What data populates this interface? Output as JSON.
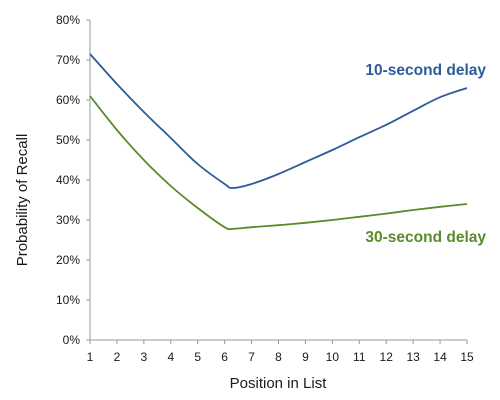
{
  "chart_data": {
    "type": "line",
    "title": "",
    "xlabel": "Position in List",
    "ylabel": "Probability of Recall",
    "x": [
      1,
      2,
      3,
      4,
      5,
      6,
      7,
      8,
      9,
      10,
      11,
      12,
      13,
      14,
      15
    ],
    "x_ticks": [
      "1",
      "2",
      "3",
      "4",
      "5",
      "6",
      "7",
      "8",
      "9",
      "10",
      "11",
      "12",
      "13",
      "14",
      "15"
    ],
    "y_ticks": [
      "0%",
      "10%",
      "20%",
      "30%",
      "40%",
      "50%",
      "60%",
      "70%",
      "80%"
    ],
    "xlim": [
      1,
      15
    ],
    "ylim": [
      0,
      80
    ],
    "y_unit": "%",
    "grid": false,
    "legend": "inline labels next to series",
    "series": [
      {
        "name": "10-second delay",
        "color": "#2e5b9a",
        "x": [
          1,
          2,
          3,
          4,
          5,
          6,
          6.3,
          7,
          8,
          9,
          10,
          11,
          12,
          13,
          14,
          15
        ],
        "values": [
          71.5,
          64,
          57,
          50.5,
          44,
          39,
          38,
          39,
          41.5,
          44.5,
          47.5,
          50.7,
          53.8,
          57.3,
          60.7,
          63
        ]
      },
      {
        "name": "30-second delay",
        "color": "#5a8a2a",
        "x": [
          1,
          2,
          3,
          4,
          5,
          6,
          6.3,
          7,
          8,
          9,
          10,
          11,
          12,
          13,
          14,
          15
        ],
        "values": [
          61,
          52.5,
          45,
          38.5,
          33,
          28.2,
          27.8,
          28.2,
          28.7,
          29.3,
          30,
          30.8,
          31.6,
          32.5,
          33.3,
          34
        ]
      }
    ]
  }
}
